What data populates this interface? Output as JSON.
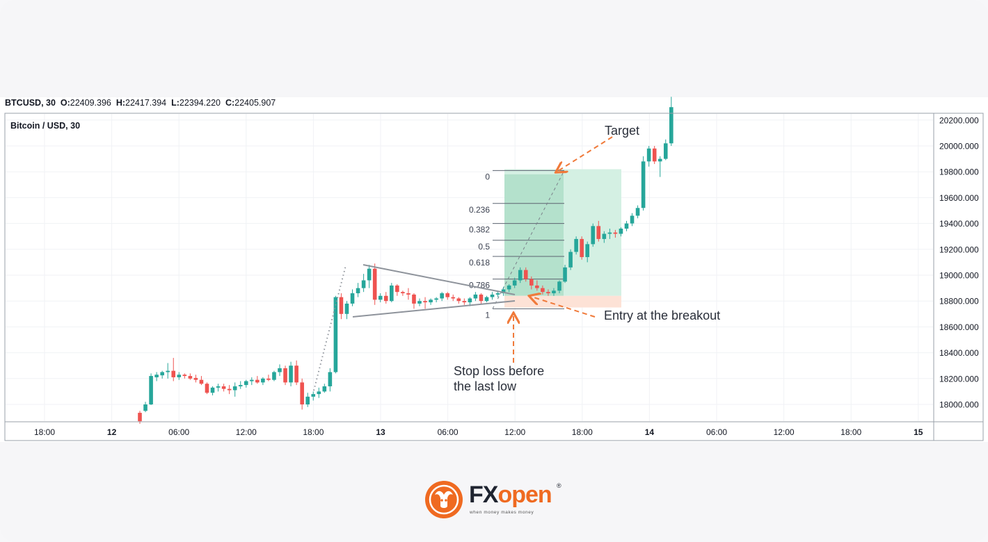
{
  "header": {
    "symbol": "BTCUSD, 30",
    "o_label": "O:",
    "o_value": "22409.396",
    "h_label": "H:",
    "h_value": "22417.394",
    "l_label": "L:",
    "l_value": "22394.220",
    "c_label": "C:",
    "c_value": "22405.907"
  },
  "chart_data": {
    "type": "candlestick",
    "title": "Bitcoin / USD, 30",
    "x_ticks": [
      "18:00",
      "12",
      "06:00",
      "12:00",
      "18:00",
      "13",
      "06:00",
      "12:00",
      "18:00",
      "14",
      "06:00",
      "12:00",
      "18:00",
      "15"
    ],
    "y_ticks": [
      "18000.000",
      "18200.000",
      "18400.000",
      "18600.000",
      "18800.000",
      "19000.000",
      "19200.000",
      "19400.000",
      "19600.000",
      "19800.000",
      "20000.000",
      "20200.000"
    ],
    "y_range": [
      17870,
      20330
    ],
    "fib_levels": [
      {
        "label": "0",
        "price": 19810
      },
      {
        "label": "0.236",
        "price": 19555
      },
      {
        "label": "0.382",
        "price": 19400
      },
      {
        "label": "0.5",
        "price": 19270
      },
      {
        "label": "0.618",
        "price": 19145
      },
      {
        "label": "0.786",
        "price": 18970
      },
      {
        "label": "1",
        "price": 18740
      }
    ],
    "candles": [
      [
        17935,
        17950,
        17850,
        17870
      ],
      [
        17950,
        18020,
        17940,
        18000
      ],
      [
        18000,
        18240,
        17995,
        18220
      ],
      [
        18210,
        18250,
        18180,
        18230
      ],
      [
        18225,
        18260,
        18200,
        18250
      ],
      [
        18250,
        18320,
        18200,
        18260
      ],
      [
        18260,
        18360,
        18180,
        18210
      ],
      [
        18210,
        18250,
        18190,
        18230
      ],
      [
        18230,
        18240,
        18200,
        18220
      ],
      [
        18220,
        18240,
        18190,
        18200
      ],
      [
        18205,
        18230,
        18170,
        18190
      ],
      [
        18190,
        18220,
        18150,
        18160
      ],
      [
        18160,
        18170,
        18080,
        18090
      ],
      [
        18090,
        18140,
        18070,
        18130
      ],
      [
        18130,
        18160,
        18100,
        18140
      ],
      [
        18140,
        18160,
        18100,
        18120
      ],
      [
        18120,
        18150,
        18080,
        18110
      ],
      [
        18110,
        18170,
        18060,
        18140
      ],
      [
        18140,
        18180,
        18120,
        18150
      ],
      [
        18150,
        18190,
        18130,
        18180
      ],
      [
        18180,
        18210,
        18150,
        18190
      ],
      [
        18190,
        18220,
        18160,
        18170
      ],
      [
        18170,
        18210,
        18150,
        18200
      ],
      [
        18200,
        18230,
        18180,
        18190
      ],
      [
        18190,
        18260,
        18180,
        18250
      ],
      [
        18250,
        18310,
        18220,
        18280
      ],
      [
        18280,
        18300,
        18150,
        18170
      ],
      [
        18170,
        18330,
        18140,
        18300
      ],
      [
        18300,
        18340,
        18150,
        18170
      ],
      [
        18170,
        18200,
        17960,
        18000
      ],
      [
        18000,
        18090,
        17980,
        18060
      ],
      [
        18060,
        18100,
        18030,
        18080
      ],
      [
        18080,
        18130,
        18050,
        18100
      ],
      [
        18100,
        18160,
        18090,
        18140
      ],
      [
        18140,
        18280,
        18100,
        18250
      ],
      [
        18250,
        18840,
        18240,
        18830
      ],
      [
        18830,
        18860,
        18660,
        18700
      ],
      [
        18700,
        18800,
        18660,
        18780
      ],
      [
        18780,
        18890,
        18760,
        18860
      ],
      [
        18860,
        18940,
        18830,
        18900
      ],
      [
        18900,
        19010,
        18870,
        18960
      ],
      [
        18960,
        19080,
        18900,
        19050
      ],
      [
        19050,
        19090,
        18770,
        18810
      ],
      [
        18810,
        18860,
        18790,
        18840
      ],
      [
        18840,
        18870,
        18780,
        18800
      ],
      [
        18800,
        18940,
        18790,
        18920
      ],
      [
        18920,
        18930,
        18840,
        18870
      ],
      [
        18870,
        18880,
        18840,
        18860
      ],
      [
        18860,
        18900,
        18810,
        18850
      ],
      [
        18850,
        18860,
        18740,
        18780
      ],
      [
        18780,
        18820,
        18760,
        18800
      ],
      [
        18800,
        18830,
        18740,
        18790
      ],
      [
        18790,
        18820,
        18770,
        18810
      ],
      [
        18810,
        18830,
        18790,
        18820
      ],
      [
        18820,
        18870,
        18800,
        18860
      ],
      [
        18860,
        18870,
        18810,
        18830
      ],
      [
        18830,
        18850,
        18800,
        18820
      ],
      [
        18820,
        18830,
        18780,
        18800
      ],
      [
        18800,
        18820,
        18770,
        18790
      ],
      [
        18790,
        18830,
        18760,
        18820
      ],
      [
        18820,
        18870,
        18800,
        18850
      ],
      [
        18850,
        18860,
        18780,
        18800
      ],
      [
        18800,
        18840,
        18790,
        18830
      ],
      [
        18830,
        18870,
        18810,
        18850
      ],
      [
        18850,
        18880,
        18830,
        18860
      ],
      [
        18860,
        18910,
        18840,
        18890
      ],
      [
        18890,
        18930,
        18870,
        18920
      ],
      [
        18920,
        18980,
        18900,
        18960
      ],
      [
        18960,
        19060,
        18940,
        19040
      ],
      [
        19040,
        19060,
        18950,
        18970
      ],
      [
        18970,
        18990,
        18890,
        18920
      ],
      [
        18920,
        18960,
        18880,
        18900
      ],
      [
        18900,
        18920,
        18850,
        18870
      ],
      [
        18870,
        18890,
        18840,
        18860
      ],
      [
        18860,
        18900,
        18840,
        18880
      ],
      [
        18880,
        18960,
        18860,
        18950
      ],
      [
        18950,
        19080,
        18940,
        19060
      ],
      [
        19060,
        19200,
        19040,
        19180
      ],
      [
        19180,
        19300,
        19160,
        19280
      ],
      [
        19280,
        19300,
        19120,
        19140
      ],
      [
        19140,
        19260,
        19100,
        19240
      ],
      [
        19240,
        19400,
        19220,
        19380
      ],
      [
        19380,
        19420,
        19260,
        19280
      ],
      [
        19280,
        19340,
        19250,
        19320
      ],
      [
        19320,
        19360,
        19280,
        19330
      ],
      [
        19330,
        19350,
        19290,
        19320
      ],
      [
        19320,
        19370,
        19300,
        19360
      ],
      [
        19360,
        19420,
        19340,
        19400
      ],
      [
        19400,
        19480,
        19380,
        19460
      ],
      [
        19460,
        19540,
        19440,
        19520
      ],
      [
        19520,
        19920,
        19500,
        19880
      ],
      [
        19880,
        20000,
        19840,
        19980
      ],
      [
        19980,
        20000,
        19860,
        19880
      ],
      [
        19880,
        19920,
        19760,
        19900
      ],
      [
        19900,
        20050,
        19890,
        20020
      ],
      [
        20020,
        20380,
        20000,
        20300
      ]
    ],
    "annotations": {
      "target": "Target",
      "entry": "Entry at the breakout",
      "stop_line1": "Stop loss before",
      "stop_line2": "the last low"
    },
    "colors": {
      "up": "#26a69a",
      "down": "#ef5350",
      "annotation": "#f07a3a",
      "target_zone": "#d4f0e3",
      "stop_zone": "#fde2d6"
    }
  },
  "brand": {
    "name_fx": "FX",
    "name_open": "open",
    "registered": "®",
    "tagline": "when money makes money"
  }
}
